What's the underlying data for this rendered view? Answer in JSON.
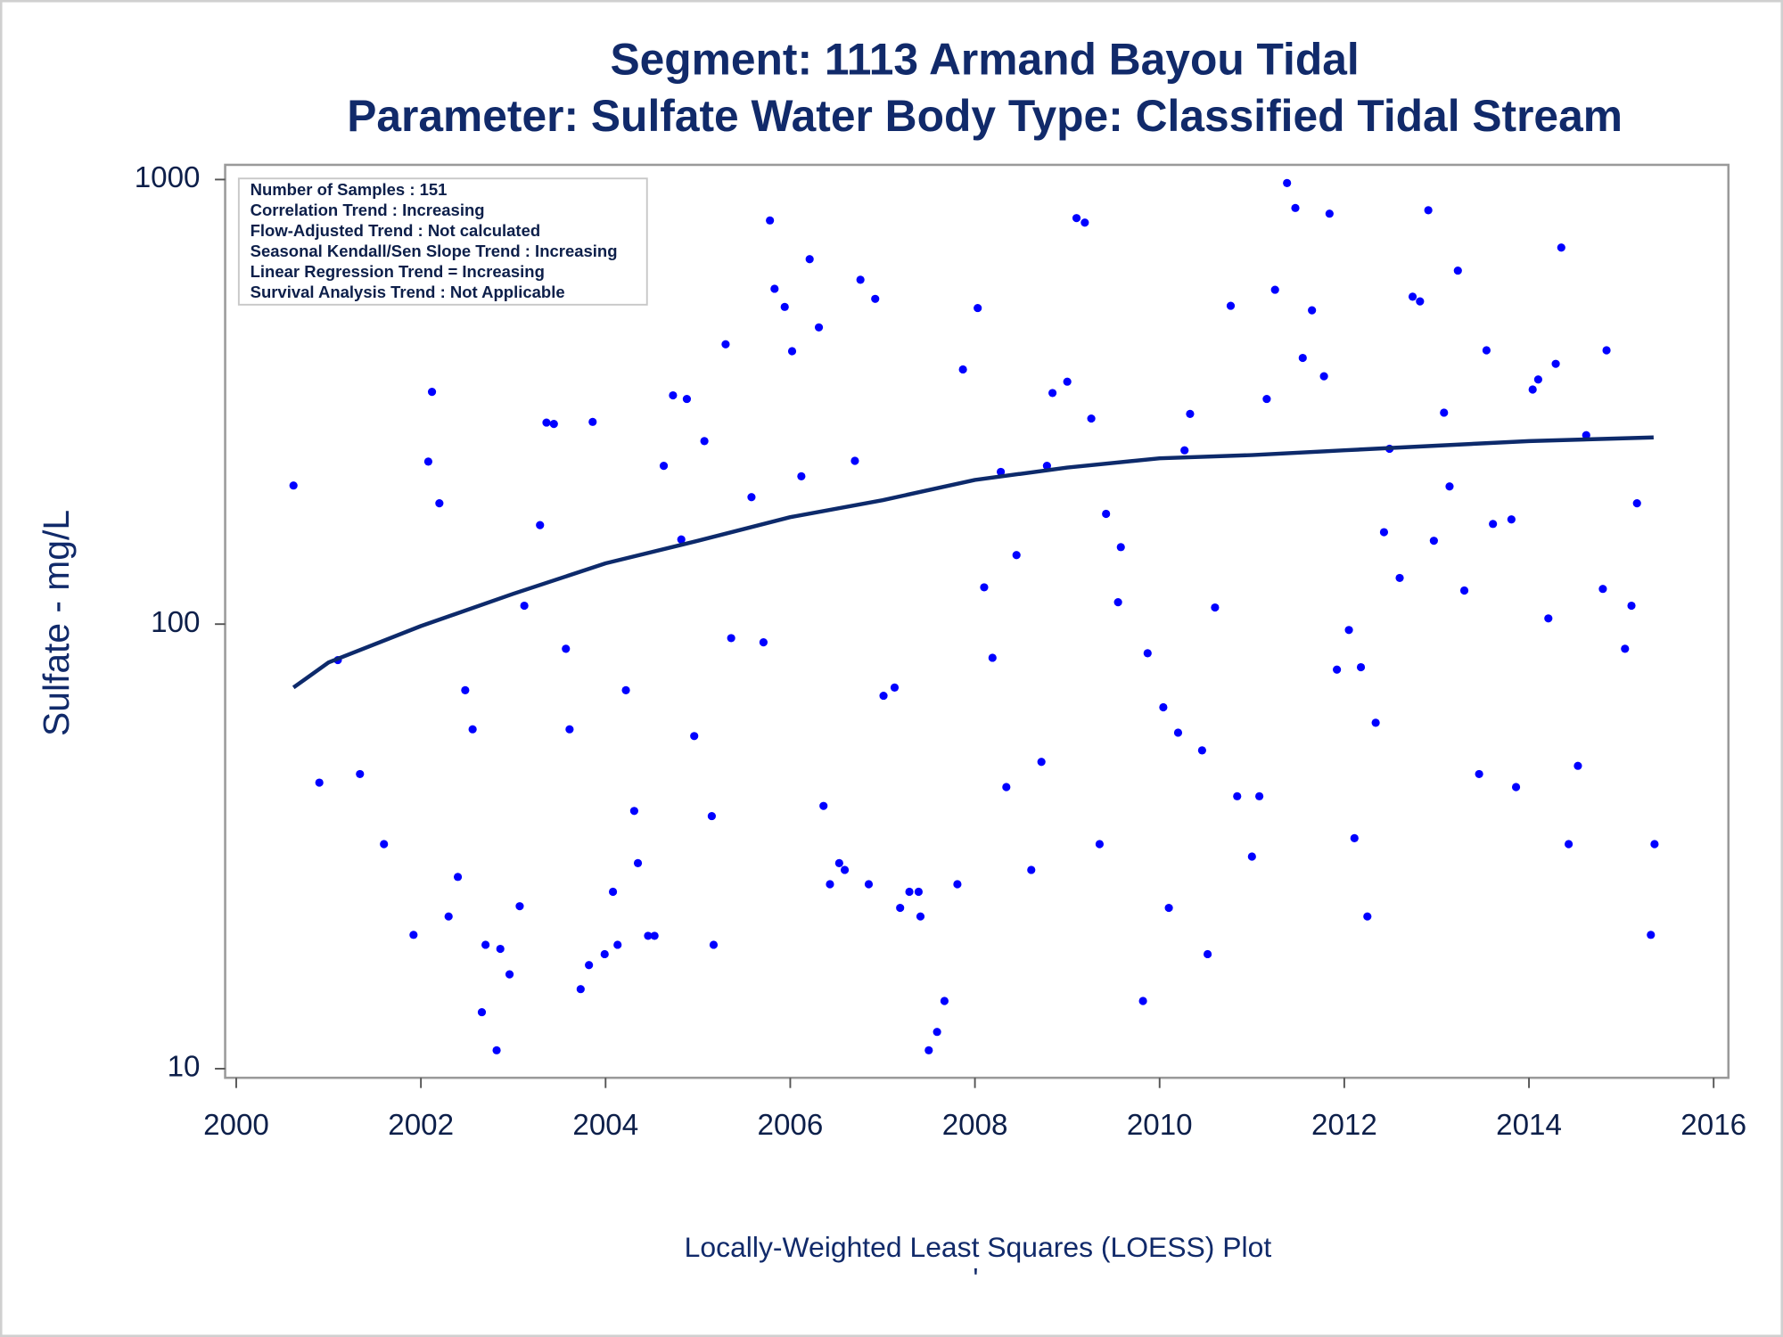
{
  "chart_data": {
    "type": "scatter",
    "title": "Segment: 1113  Armand Bayou Tidal",
    "subtitle": "Parameter: Sulfate   Water Body Type: Classified Tidal Stream",
    "y_label": "Sulfate - mg/L",
    "footnote": "Locally-Weighted Least Squares (LOESS) Plot",
    "footnote_mark": "'",
    "annotations": [
      "Number of Samples : 151",
      "Correlation Trend : Increasing",
      "Flow-Adjusted Trend : Not calculated",
      "Seasonal Kendall/Sen Slope Trend : Increasing",
      "Linear Regression Trend = Increasing",
      "Survival Analysis Trend : Not Applicable"
    ],
    "log_scale": true,
    "xlim": [
      1999.88,
      2016.16
    ],
    "ylim": [
      9.54,
      1079
    ],
    "xticks": [
      2000,
      2002,
      2004,
      2006,
      2008,
      2010,
      2012,
      2014,
      2016
    ],
    "yticks": [
      10,
      100,
      1000
    ],
    "color": "#0000ff",
    "x": [
      2000.62,
      2000.9,
      2001.1,
      2001.34,
      2001.6,
      2001.92,
      2002.08,
      2002.12,
      2002.2,
      2002.3,
      2002.4,
      2002.48,
      2002.56,
      2002.66,
      2002.7,
      2002.82,
      2002.86,
      2002.96,
      2003.07,
      2003.12,
      2003.29,
      2003.36,
      2003.44,
      2003.57,
      2003.61,
      2003.73,
      2003.82,
      2003.86,
      2003.99,
      2004.08,
      2004.13,
      2004.22,
      2004.31,
      2004.35,
      2004.46,
      2004.53,
      2004.63,
      2004.73,
      2004.82,
      2004.88,
      2004.96,
      2005.07,
      2005.15,
      2005.17,
      2005.3,
      2005.36,
      2005.58,
      2005.71,
      2005.78,
      2005.83,
      2005.94,
      2006.02,
      2006.12,
      2006.21,
      2006.31,
      2006.36,
      2006.43,
      2006.53,
      2006.59,
      2006.7,
      2006.76,
      2006.85,
      2006.92,
      2007.01,
      2007.13,
      2007.19,
      2007.29,
      2007.39,
      2007.41,
      2007.5,
      2007.59,
      2007.67,
      2007.81,
      2007.87,
      2008.03,
      2008.1,
      2008.19,
      2008.28,
      2008.34,
      2008.45,
      2008.61,
      2008.72,
      2008.78,
      2008.84,
      2009.0,
      2009.1,
      2009.19,
      2009.26,
      2009.35,
      2009.42,
      2009.55,
      2009.58,
      2009.82,
      2009.87,
      2010.04,
      2010.1,
      2010.2,
      2010.27,
      2010.33,
      2010.46,
      2010.52,
      2010.6,
      2010.77,
      2010.84,
      2011.0,
      2011.08,
      2011.16,
      2011.25,
      2011.38,
      2011.47,
      2011.55,
      2011.65,
      2011.78,
      2011.84,
      2011.92,
      2012.05,
      2012.11,
      2012.18,
      2012.25,
      2012.34,
      2012.43,
      2012.49,
      2012.6,
      2012.74,
      2012.82,
      2012.91,
      2012.97,
      2013.08,
      2013.14,
      2013.23,
      2013.3,
      2013.46,
      2013.54,
      2013.61,
      2013.81,
      2013.86,
      2014.04,
      2014.1,
      2014.21,
      2014.29,
      2014.35,
      2014.43,
      2014.53,
      2014.62,
      2014.8,
      2014.84,
      2015.04,
      2015.11,
      2015.17,
      2015.32,
      2015.36
    ],
    "values": [
      205,
      44,
      83,
      46,
      32,
      20,
      232,
      333,
      187,
      22,
      27,
      71,
      58,
      13.4,
      19,
      11,
      18.6,
      16.3,
      23.2,
      110,
      167,
      284,
      282,
      88,
      58,
      15.1,
      17.1,
      285,
      18.1,
      25,
      19,
      71,
      38,
      29,
      19.9,
      19.9,
      227,
      327,
      155,
      321,
      56,
      258,
      37,
      19,
      426,
      93,
      193,
      91,
      809,
      568,
      517,
      411,
      215,
      662,
      465,
      39,
      26,
      29,
      28,
      233,
      595,
      26,
      539,
      69,
      72,
      23,
      25,
      25,
      22,
      11,
      12.1,
      14.2,
      26,
      374,
      514,
      121,
      84,
      220,
      43,
      143,
      28,
      49,
      227,
      331,
      351,
      819,
      800,
      290,
      32,
      177,
      112,
      149,
      14.2,
      86,
      65,
      23,
      57,
      246,
      297,
      52,
      18.1,
      109,
      520,
      41,
      30,
      41,
      321,
      565,
      982,
      863,
      397,
      508,
      361,
      838,
      79,
      97,
      33,
      80,
      22,
      60,
      161,
      248,
      127,
      545,
      532,
      853,
      154,
      299,
      204,
      624,
      119,
      46,
      413,
      168,
      172,
      43,
      337,
      355,
      103,
      385,
      703,
      32,
      48,
      266,
      120,
      413,
      88,
      110,
      187,
      20,
      32
    ],
    "loess": {
      "color": "#0d2a6b",
      "x": [
        2000.62,
        2001,
        2002,
        2003,
        2004,
        2005,
        2006,
        2007,
        2008,
        2009,
        2010,
        2011,
        2012,
        2013,
        2014,
        2015.35
      ],
      "values": [
        72,
        82,
        99,
        117,
        137,
        154,
        174,
        190,
        211,
        225,
        236,
        240,
        246,
        252,
        258,
        263
      ]
    }
  }
}
